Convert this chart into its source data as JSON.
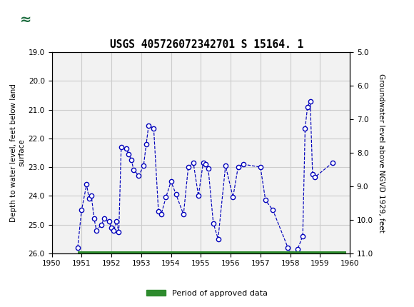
{
  "title": "USGS 405726072342701 S 15164. 1",
  "ylabel_left": "Depth to water level, feet below land\nsurface",
  "ylabel_right": "Groundwater level above NGVD 1929, feet",
  "ylim_left": [
    19.0,
    26.0
  ],
  "ylim_right": [
    11.0,
    5.0
  ],
  "xlim": [
    1950,
    1960
  ],
  "xticks": [
    1950,
    1951,
    1952,
    1953,
    1954,
    1955,
    1956,
    1957,
    1958,
    1959,
    1960
  ],
  "yticks_left": [
    19.0,
    20.0,
    21.0,
    22.0,
    23.0,
    24.0,
    25.0,
    26.0
  ],
  "yticks_right": [
    11.0,
    10.0,
    9.0,
    8.0,
    7.0,
    6.0,
    5.0
  ],
  "header_color": "#1a6b3c",
  "line_color": "#0000bb",
  "marker_facecolor": "#ffffff",
  "marker_edgecolor": "#0000bb",
  "plot_bg_color": "#f2f2f2",
  "grid_color": "#cccccc",
  "green_bar_color": "#2e8b2e",
  "legend_label": "Period of approved data",
  "x_data": [
    1950.87,
    1951.0,
    1951.17,
    1951.25,
    1951.33,
    1951.42,
    1951.5,
    1951.67,
    1951.75,
    1951.92,
    1952.0,
    1952.08,
    1952.17,
    1952.25,
    1952.33,
    1952.5,
    1952.58,
    1952.67,
    1952.75,
    1952.92,
    1953.08,
    1953.17,
    1953.25,
    1953.42,
    1953.58,
    1953.67,
    1953.83,
    1954.0,
    1954.17,
    1954.42,
    1954.58,
    1954.75,
    1954.92,
    1955.08,
    1955.17,
    1955.25,
    1955.42,
    1955.58,
    1955.83,
    1956.08,
    1956.25,
    1956.42,
    1957.0,
    1957.17,
    1957.42,
    1957.92,
    1958.0,
    1958.08,
    1958.17,
    1958.25,
    1958.42,
    1958.5,
    1958.58,
    1958.67,
    1958.75,
    1958.83,
    1959.42
  ],
  "y_data": [
    25.8,
    24.5,
    23.6,
    24.1,
    24.0,
    24.8,
    25.2,
    25.0,
    24.8,
    24.9,
    25.1,
    25.2,
    24.9,
    25.25,
    22.3,
    22.35,
    22.55,
    22.75,
    23.1,
    23.3,
    22.95,
    22.2,
    21.55,
    21.65,
    24.55,
    24.65,
    24.05,
    23.5,
    23.95,
    24.65,
    23.0,
    22.85,
    24.0,
    22.85,
    22.9,
    23.05,
    24.95,
    25.5,
    22.95,
    24.05,
    23.0,
    22.9,
    23.0,
    24.15,
    24.5,
    25.8,
    26.0,
    26.0,
    26.0,
    25.85,
    25.4,
    21.65,
    20.9,
    20.7,
    23.25,
    23.35,
    22.85
  ],
  "approved_start": 1950.87,
  "approved_end": 1959.87
}
